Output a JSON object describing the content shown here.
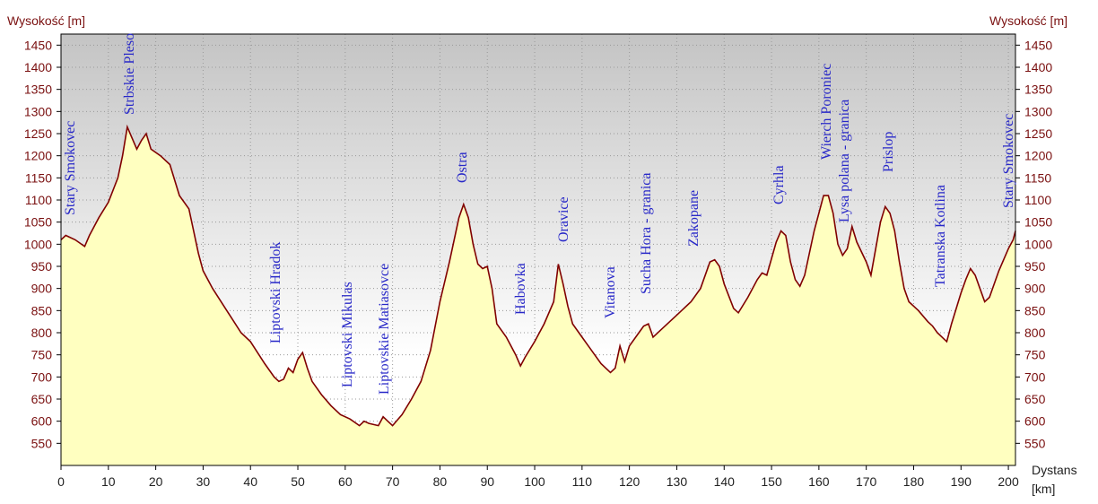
{
  "chart_data": {
    "type": "area",
    "y_label": "Wysokość [m]",
    "y2_label": "Wysokość [m]",
    "x_label": "Dystans [km]",
    "xlim": [
      0,
      201.5
    ],
    "ylim": [
      500,
      1475
    ],
    "xticks": [
      0,
      10,
      20,
      30,
      40,
      50,
      60,
      70,
      80,
      90,
      100,
      110,
      120,
      130,
      140,
      150,
      160,
      170,
      180,
      190,
      200
    ],
    "yticks": [
      550,
      600,
      650,
      700,
      750,
      800,
      850,
      900,
      950,
      1000,
      1050,
      1100,
      1150,
      1200,
      1250,
      1300,
      1350,
      1400,
      1450
    ],
    "grid": true,
    "x": [
      0,
      1,
      3,
      5,
      6,
      8,
      10,
      12,
      13,
      14,
      15,
      16,
      17,
      18,
      19,
      21,
      23,
      25,
      27,
      29,
      30,
      32,
      35,
      38,
      40,
      43,
      45,
      46,
      47,
      48,
      49,
      50,
      51,
      52,
      53,
      55,
      57,
      59,
      61,
      63,
      64,
      65,
      67,
      68,
      69,
      70,
      72,
      74,
      76,
      78,
      80,
      82,
      84,
      85,
      86,
      87,
      88,
      89,
      90,
      91,
      92,
      94,
      96,
      97,
      98,
      100,
      102,
      104,
      105,
      106,
      107,
      108,
      110,
      112,
      114,
      116,
      117,
      118,
      119,
      120,
      122,
      123,
      124,
      125,
      127,
      130,
      133,
      135,
      137,
      138,
      139,
      140,
      142,
      143,
      145,
      147,
      148,
      149,
      151,
      152,
      153,
      154,
      155,
      156,
      157,
      159,
      161,
      162,
      163,
      164,
      165,
      166,
      167,
      168,
      170,
      171,
      172,
      173,
      174,
      175,
      176,
      177,
      178,
      179,
      181,
      183,
      184,
      185,
      187,
      188,
      190,
      191,
      192,
      193,
      194,
      195,
      196,
      198,
      200,
      201,
      201.5
    ],
    "series": [
      {
        "color": "#800000",
        "fill": "#ffffc0",
        "values": [
          1010,
          1020,
          1010,
          995,
          1020,
          1060,
          1095,
          1150,
          1200,
          1265,
          1240,
          1215,
          1235,
          1250,
          1215,
          1200,
          1180,
          1110,
          1080,
          980,
          940,
          900,
          850,
          800,
          780,
          730,
          700,
          690,
          695,
          720,
          710,
          740,
          755,
          720,
          690,
          660,
          635,
          615,
          605,
          590,
          600,
          595,
          590,
          610,
          600,
          590,
          615,
          650,
          690,
          760,
          870,
          960,
          1060,
          1090,
          1060,
          1000,
          955,
          945,
          950,
          900,
          820,
          790,
          750,
          725,
          745,
          780,
          820,
          870,
          955,
          910,
          860,
          820,
          790,
          760,
          730,
          710,
          720,
          770,
          735,
          770,
          800,
          815,
          820,
          790,
          810,
          840,
          870,
          900,
          960,
          965,
          950,
          910,
          855,
          845,
          880,
          920,
          935,
          930,
          1005,
          1030,
          1020,
          960,
          920,
          905,
          930,
          1030,
          1110,
          1110,
          1070,
          1000,
          975,
          990,
          1040,
          1005,
          960,
          930,
          990,
          1050,
          1085,
          1070,
          1030,
          960,
          900,
          870,
          850,
          825,
          815,
          800,
          780,
          820,
          890,
          920,
          945,
          930,
          900,
          870,
          880,
          940,
          990,
          1010,
          1030
        ]
      }
    ],
    "annotations": [
      "Stary Smokovec",
      "Strbskie Pleso",
      "Liptovski Hradok",
      "Liptovski Mikulas",
      "Liptovskie Matiasovce",
      "Ostra",
      "Habovka",
      "Oravice",
      "Vitanova",
      "Sucha Hora - granica",
      "Zakopane",
      "Cyrhla",
      "Wierch Poroniec",
      "Lysa polana - granica",
      "Prislop",
      "Tatranska Kotlina",
      "Stary Smokovec"
    ]
  }
}
